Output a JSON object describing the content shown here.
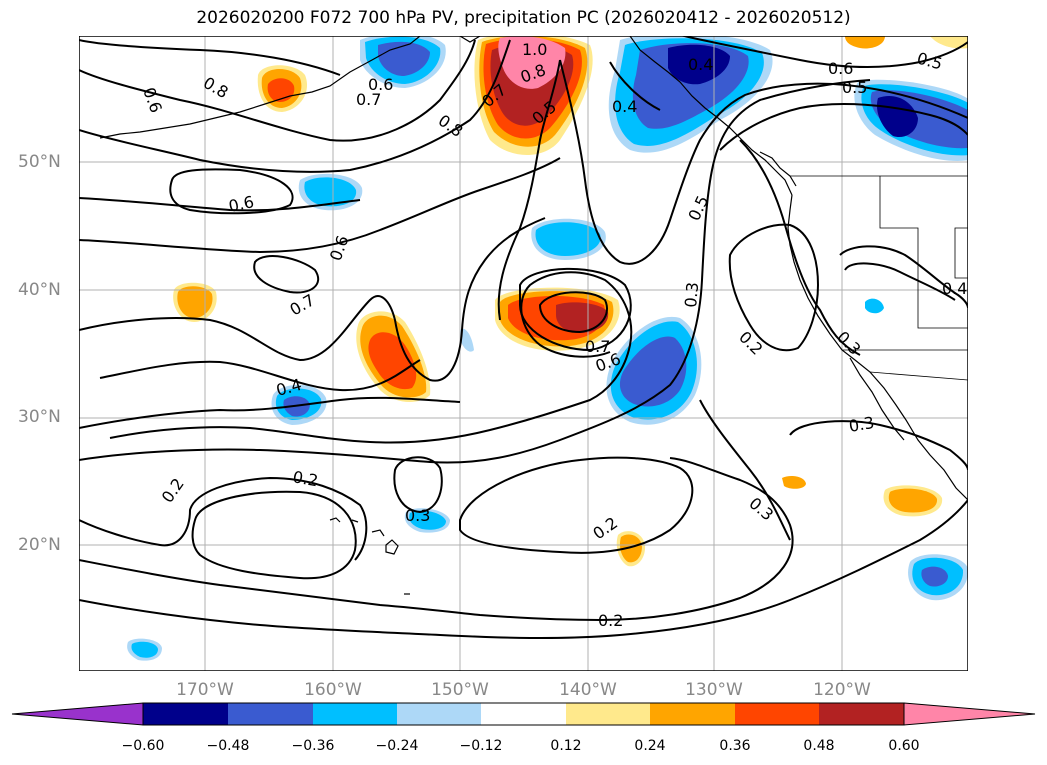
{
  "title": "2026020200 F072 700 hPa PV, precipitation PC (2026020412 - 2026020512)",
  "lat_labels": [
    "50°N",
    "40°N",
    "30°N",
    "20°N"
  ],
  "lon_labels": [
    "170°W",
    "160°W",
    "150°W",
    "140°W",
    "130°W",
    "120°W"
  ],
  "colorbar": {
    "ticks": [
      "−0.60",
      "−0.48",
      "−0.36",
      "−0.24",
      "−0.12",
      "0.12",
      "0.24",
      "0.36",
      "0.48",
      "0.60"
    ],
    "colors": [
      "#9932cc",
      "#00008b",
      "#3a5bd0",
      "#00bfff",
      "#add8f7",
      "#ffffff",
      "#ffe98c",
      "#ffa500",
      "#ff4500",
      "#b22222",
      "#ff85a8"
    ]
  },
  "contour_labels": {
    "c06a": "0.6",
    "c08a": "0.8",
    "c06b": "0.6",
    "c07a": "0.7",
    "c08b": "0.8",
    "c10": "1.0",
    "c08c": "0.8",
    "c07b": "0.7",
    "c05a": "0.5",
    "c04a": "0.4",
    "c04b": "0.4",
    "c06c": "0.6",
    "c05b": "0.5",
    "c05c": "0.5",
    "c06d": "0.6",
    "c06e": "0.6",
    "c07c": "0.7",
    "c05d": "0.5",
    "c03a": "0.3",
    "c07d": "0.7",
    "c06f": "0.6",
    "c02a": "0.2",
    "c03b": "0.3",
    "c04c": "0.4",
    "c04d": "0.4",
    "c03c": "0.3",
    "c02b": "0.2",
    "c02c": "0.2",
    "c03d": "0.3",
    "c02d": "0.2",
    "c03e": "0.3",
    "c02e": "0.2"
  }
}
